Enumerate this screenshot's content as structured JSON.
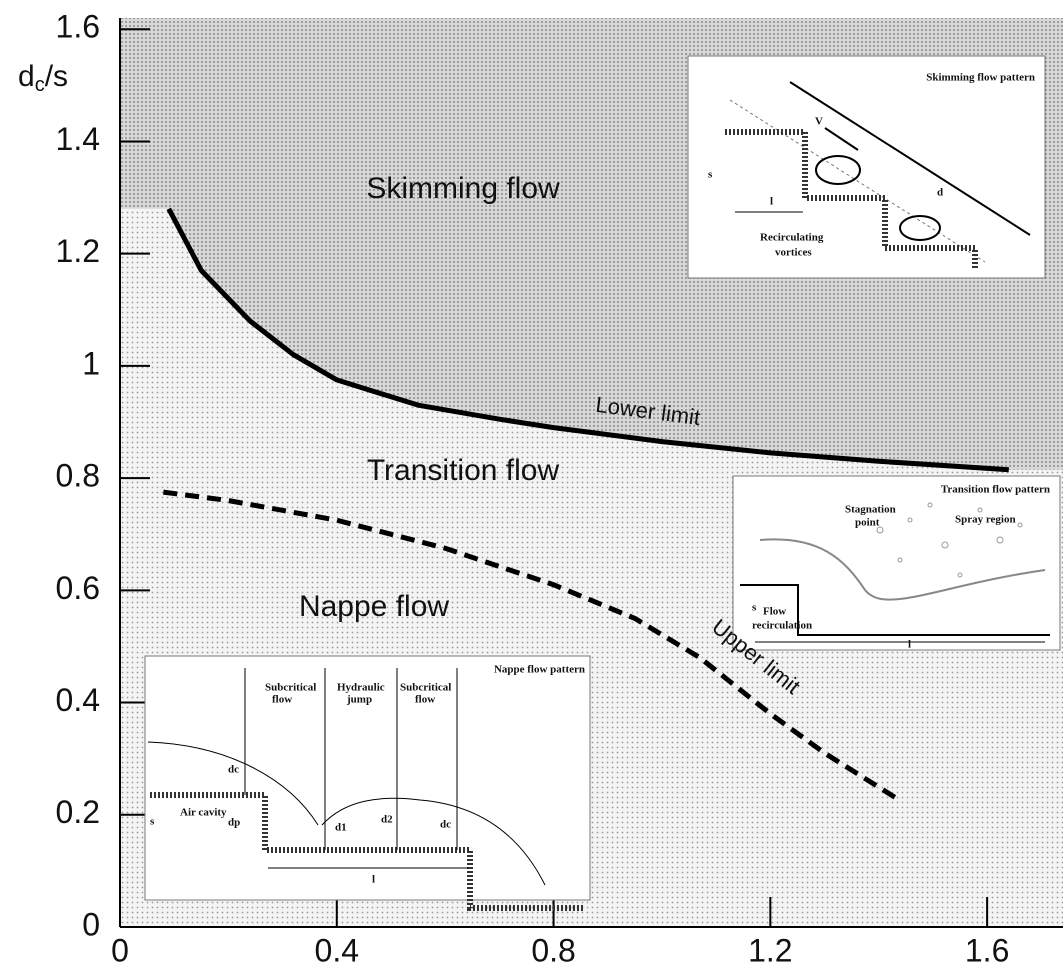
{
  "chart_data": {
    "type": "line",
    "y_label": [
      "d",
      "c",
      "/s"
    ],
    "xlim": [
      0,
      1.74
    ],
    "ylim": [
      0,
      1.62
    ],
    "xticks": [
      0,
      0.4,
      0.8,
      1.2,
      1.6
    ],
    "yticks": [
      0,
      0.2,
      0.4,
      0.6,
      0.8,
      1,
      1.2,
      1.4,
      1.6
    ],
    "annotations": [
      "Skimming flow",
      "Transition flow",
      "Nappe flow"
    ],
    "series": [
      {
        "name": "Lower limit",
        "color": "#000000",
        "line_style": "solid",
        "x": [
          0.09,
          0.15,
          0.24,
          0.32,
          0.4,
          0.55,
          0.7,
          0.8,
          1.0,
          1.2,
          1.4,
          1.64
        ],
        "values": [
          1.28,
          1.17,
          1.08,
          1.02,
          0.975,
          0.93,
          0.905,
          0.89,
          0.865,
          0.845,
          0.83,
          0.815
        ]
      },
      {
        "name": "Upper limit",
        "color": "#000000",
        "line_style": "dashed",
        "x": [
          0.08,
          0.2,
          0.4,
          0.6,
          0.8,
          0.95,
          1.07,
          1.2,
          1.3,
          1.44
        ],
        "values": [
          0.775,
          0.76,
          0.725,
          0.675,
          0.61,
          0.55,
          0.48,
          0.38,
          0.31,
          0.225
        ]
      }
    ]
  },
  "insets": [
    {
      "title": "Skimming flow pattern",
      "labels": [
        "Recirculating",
        "vortices",
        "V",
        "d",
        "s",
        "l"
      ]
    },
    {
      "title": "Transition flow pattern",
      "labels": [
        "Stagnation",
        "point",
        "Spray region",
        "Flow",
        "recirculation",
        "s",
        "l"
      ]
    },
    {
      "title": "Nappe flow pattern",
      "labels": [
        "Subcritical",
        "flow",
        "Hydraulic",
        "jump",
        "Subcritical",
        "flow",
        "Air cavity",
        "s",
        "l",
        "dc",
        "dp",
        "d1",
        "d2",
        "dc"
      ]
    }
  ]
}
